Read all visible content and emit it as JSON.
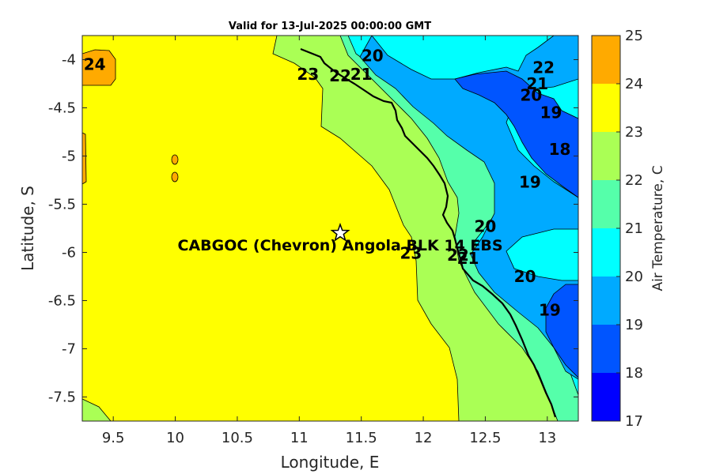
{
  "chart_data": {
    "type": "contour-map",
    "title": "Valid for 13-Jul-2025 00:00:00 GMT",
    "xlabel": "Longitude, E",
    "ylabel": "Latitude, S",
    "xlim": [
      9.25,
      13.25
    ],
    "ylim": [
      -7.75,
      -3.75
    ],
    "xticks": [
      9.5,
      10,
      10.5,
      11,
      11.5,
      12,
      12.5,
      13
    ],
    "xtick_labels": [
      "9.5",
      "10",
      "10.5",
      "11",
      "11.5",
      "12",
      "12.5",
      "13"
    ],
    "yticks": [
      -4,
      -4.5,
      -5,
      -5.5,
      -6,
      -6.5,
      -7,
      -7.5
    ],
    "ytick_labels": [
      "-4",
      "-4.5",
      "-5",
      "-5.5",
      "-6",
      "-6.5",
      "-7",
      "-7.5"
    ],
    "colorbar": {
      "label": "Air Temperature, C",
      "min": 17,
      "max": 25,
      "ticks": [
        "17",
        "18",
        "19",
        "20",
        "21",
        "22",
        "23",
        "24",
        "25"
      ],
      "colors": [
        "#0000ff",
        "#0055ff",
        "#00aaff",
        "#00ffff",
        "#55ffaa",
        "#aaff55",
        "#ffff00",
        "#ffaa00"
      ]
    },
    "site": {
      "name": "CABGOC (Chevron)  Angola BLK 14 EBS",
      "lon": 11.33,
      "lat": -5.8
    },
    "contour_labels": [
      {
        "text": "24",
        "lon": 9.35,
        "lat": -4.05
      },
      {
        "text": "23",
        "lon": 11.07,
        "lat": -4.15
      },
      {
        "text": "22",
        "lon": 11.33,
        "lat": -4.17
      },
      {
        "text": "21",
        "lon": 11.5,
        "lat": -4.15
      },
      {
        "text": "20",
        "lon": 11.59,
        "lat": -3.96
      },
      {
        "text": "22",
        "lon": 12.97,
        "lat": -4.08
      },
      {
        "text": "21",
        "lon": 12.92,
        "lat": -4.25
      },
      {
        "text": "20",
        "lon": 12.87,
        "lat": -4.37
      },
      {
        "text": "19",
        "lon": 13.03,
        "lat": -4.55
      },
      {
        "text": "18",
        "lon": 13.1,
        "lat": -4.93
      },
      {
        "text": "19",
        "lon": 12.86,
        "lat": -5.27
      },
      {
        "text": "20",
        "lon": 12.5,
        "lat": -5.73
      },
      {
        "text": "23",
        "lon": 11.9,
        "lat": -6.01
      },
      {
        "text": "22",
        "lon": 12.28,
        "lat": -6.03
      },
      {
        "text": "21",
        "lon": 12.36,
        "lat": -6.06
      },
      {
        "text": "20",
        "lon": 12.82,
        "lat": -6.25
      },
      {
        "text": "19",
        "lon": 13.02,
        "lat": -6.6
      }
    ]
  }
}
